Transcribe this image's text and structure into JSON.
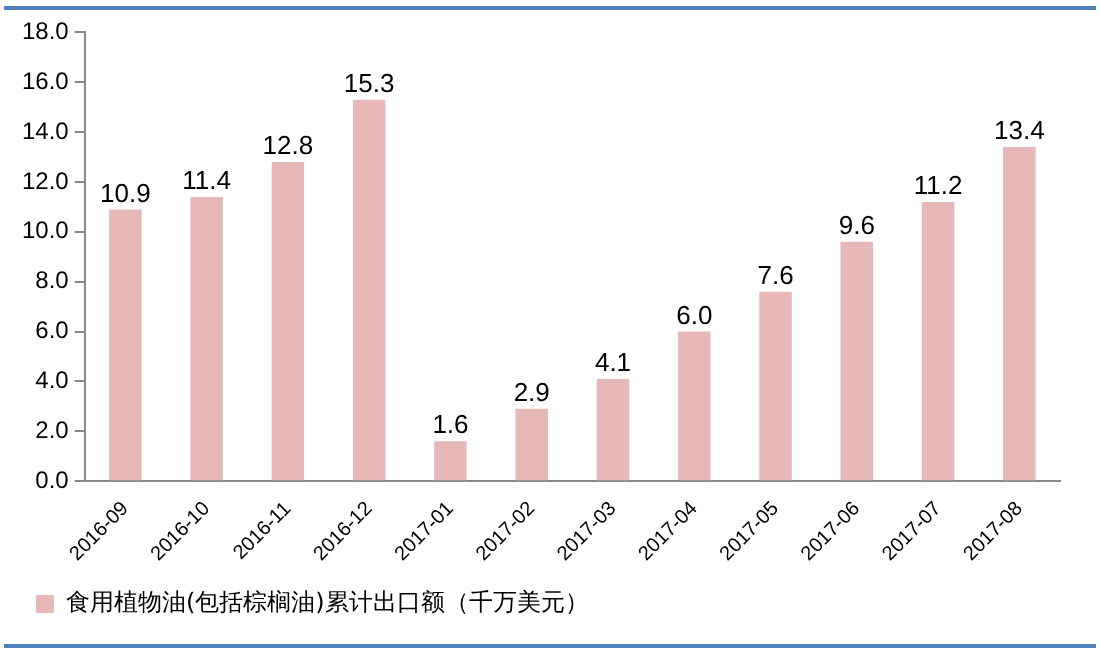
{
  "chart_data": {
    "type": "bar",
    "categories": [
      "2016-09",
      "2016-10",
      "2016-11",
      "2016-12",
      "2017-01",
      "2017-02",
      "2017-03",
      "2017-04",
      "2017-05",
      "2017-06",
      "2017-07",
      "2017-08"
    ],
    "series": [
      {
        "name": "食用植物油(包括棕榈油)累计出口额（千万美元）",
        "color": "#e6b8b7",
        "values": [
          10.9,
          11.4,
          12.8,
          15.3,
          1.6,
          2.9,
          4.1,
          6.0,
          7.6,
          9.6,
          11.2,
          13.4
        ],
        "value_labels": [
          "10.9",
          "11.4",
          "12.8",
          "15.3",
          "1.6",
          "2.9",
          "4.1",
          "6.0",
          "7.6",
          "9.6",
          "11.2",
          "13.4"
        ]
      }
    ],
    "ylim": [
      0,
      18
    ],
    "yticks": [
      {
        "value": 0,
        "label": "0.0"
      },
      {
        "value": 2,
        "label": "2.0"
      },
      {
        "value": 4,
        "label": "4.0"
      },
      {
        "value": 6,
        "label": "6.0"
      },
      {
        "value": 8,
        "label": "8.0"
      },
      {
        "value": 10,
        "label": "10.0"
      },
      {
        "value": 12,
        "label": "12.0"
      },
      {
        "value": 14,
        "label": "14.0"
      },
      {
        "value": 16,
        "label": "16.0"
      },
      {
        "value": 18,
        "label": "18.0"
      }
    ],
    "grid": false,
    "legend": "bottom"
  }
}
